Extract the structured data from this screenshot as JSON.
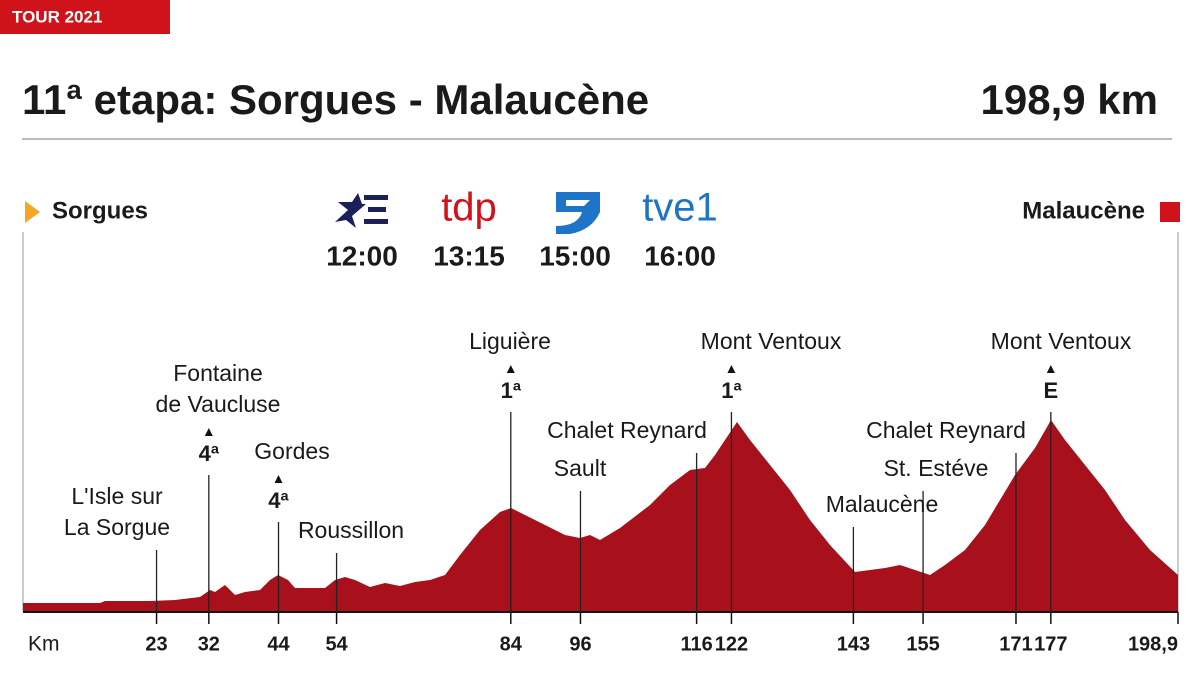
{
  "header": {
    "tag": "TOUR 2021",
    "title": "11ª etapa: Sorgues - Malaucène",
    "distance": "198,9 km"
  },
  "start": "Sorgues",
  "finish": "Malaucène",
  "broadcasts": [
    {
      "time": "12:00"
    },
    {
      "logo": "tdp",
      "time": "13:15"
    },
    {
      "time": "15:00"
    },
    {
      "logo": "tve1",
      "time": "16:00"
    }
  ],
  "axis_label": "Km",
  "km_marks": [
    23,
    32,
    44,
    54,
    84,
    96,
    116,
    122,
    143,
    155,
    171,
    177,
    {
      "value": 198.9,
      "label": "198,9"
    }
  ],
  "points": [
    {
      "lines": [
        "L'Isle sur",
        "La Sorgue"
      ],
      "km": 23
    },
    {
      "lines": [
        "Fontaine",
        "de Vaucluse"
      ],
      "category": "4ª",
      "km": 32
    },
    {
      "lines": [
        "Gordes"
      ],
      "category": "4ª",
      "km": 44
    },
    {
      "lines": [
        "Roussillon"
      ],
      "km": 54
    },
    {
      "lines": [
        "Liguière"
      ],
      "category": "1ª",
      "km": 84
    },
    {
      "lines": [
        "Sault"
      ],
      "km": 96
    },
    {
      "lines": [
        "Chalet Reynard"
      ],
      "km": 116
    },
    {
      "lines": [
        "Mont Ventoux"
      ],
      "category": "1ª",
      "km": 122
    },
    {
      "lines": [
        "Malaucène"
      ],
      "km": 143
    },
    {
      "lines": [
        "St. Estéve"
      ],
      "km": 155
    },
    {
      "lines": [
        "Chalet Reynard"
      ],
      "km": 171
    },
    {
      "lines": [
        "Mont Ventoux"
      ],
      "category": "E",
      "km": 177
    }
  ]
}
